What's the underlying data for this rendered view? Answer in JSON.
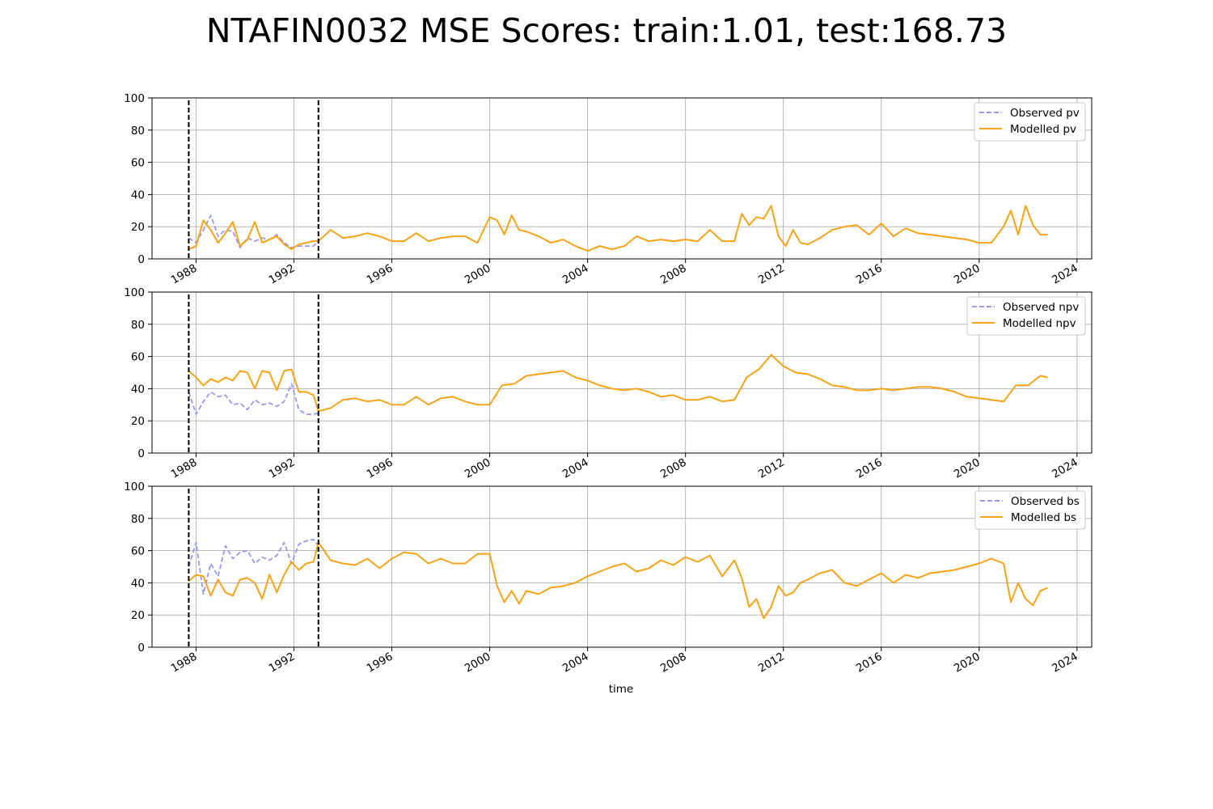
{
  "chart_data": {
    "title": "NTAFIN0032 MSE Scores: train:1.01, test:168.73",
    "xlabel": "time",
    "type": "line",
    "x_range": [
      1986.2,
      2024.6
    ],
    "x_ticks": [
      "1988",
      "1992",
      "1996",
      "2000",
      "2004",
      "2008",
      "2012",
      "2016",
      "2020",
      "2024"
    ],
    "y_ticks": [
      "0",
      "20",
      "40",
      "60",
      "80",
      "100"
    ],
    "ylim": [
      0,
      100
    ],
    "grid": true,
    "vlines": [
      1987.7,
      1993.0
    ],
    "colors": {
      "observed": "#9999ee",
      "modelled": "#f5a418",
      "vline": "#000000",
      "grid": "#b0b0b0"
    },
    "panels": [
      {
        "name": "pv",
        "legend_position": "upper right",
        "legend": [
          "Observed pv",
          "Modelled pv"
        ],
        "series": [
          {
            "name": "Observed pv",
            "style": "dashed",
            "x": [
              1987.7,
              1988.0,
              1988.3,
              1988.6,
              1988.9,
              1989.2,
              1989.5,
              1989.8,
              1990.1,
              1990.4,
              1990.7,
              1991.0,
              1991.3,
              1991.6,
              1991.9,
              1992.2,
              1992.5,
              1992.8,
              1993.0
            ],
            "y": [
              13,
              10,
              18,
              27,
              14,
              18,
              17,
              7,
              13,
              11,
              13,
              12,
              15,
              10,
              7,
              8,
              8,
              8,
              11
            ]
          },
          {
            "name": "Modelled pv",
            "style": "solid",
            "x": [
              1987.7,
              1988.0,
              1988.3,
              1988.6,
              1988.9,
              1989.2,
              1989.5,
              1989.8,
              1990.1,
              1990.4,
              1990.7,
              1991.0,
              1991.3,
              1991.6,
              1991.9,
              1992.2,
              1992.5,
              1992.8,
              1993.0,
              1993.5,
              1994.0,
              1994.5,
              1995.0,
              1995.5,
              1996.0,
              1996.5,
              1997.0,
              1997.5,
              1998.0,
              1998.5,
              1999.0,
              1999.5,
              2000.0,
              2000.3,
              2000.6,
              2000.9,
              2001.2,
              2001.5,
              2002.0,
              2002.5,
              2003.0,
              2003.5,
              2004.0,
              2004.5,
              2005.0,
              2005.5,
              2006.0,
              2006.5,
              2007.0,
              2007.5,
              2008.0,
              2008.5,
              2009.0,
              2009.5,
              2010.0,
              2010.3,
              2010.6,
              2010.9,
              2011.2,
              2011.5,
              2011.8,
              2012.1,
              2012.4,
              2012.7,
              2013.0,
              2013.5,
              2014.0,
              2014.5,
              2015.0,
              2015.5,
              2016.0,
              2016.5,
              2017.0,
              2017.5,
              2018.0,
              2018.5,
              2019.0,
              2019.5,
              2020.0,
              2020.5,
              2021.0,
              2021.3,
              2021.6,
              2021.9,
              2022.2,
              2022.5,
              2022.8
            ],
            "y": [
              6,
              8,
              24,
              18,
              10,
              16,
              23,
              8,
              12,
              23,
              10,
              12,
              14,
              9,
              6,
              9,
              10,
              11,
              11,
              18,
              13,
              14,
              16,
              14,
              11,
              11,
              16,
              11,
              13,
              14,
              14,
              10,
              26,
              24,
              15,
              27,
              18,
              17,
              14,
              10,
              12,
              8,
              5,
              8,
              6,
              8,
              14,
              11,
              12,
              11,
              12,
              11,
              18,
              11,
              11,
              28,
              21,
              26,
              25,
              33,
              14,
              8,
              18,
              10,
              9,
              13,
              18,
              20,
              21,
              15,
              22,
              14,
              19,
              16,
              15,
              14,
              13,
              12,
              10,
              10,
              20,
              30,
              15,
              33,
              21,
              15,
              15
            ]
          }
        ]
      },
      {
        "name": "npv",
        "legend_position": "upper right",
        "legend": [
          "Observed npv",
          "Modelled npv"
        ],
        "series": [
          {
            "name": "Observed npv",
            "style": "dashed",
            "x": [
              1987.7,
              1988.0,
              1988.3,
              1988.6,
              1988.9,
              1989.2,
              1989.5,
              1989.8,
              1990.1,
              1990.4,
              1990.7,
              1991.0,
              1991.3,
              1991.6,
              1991.9,
              1992.2,
              1992.5,
              1992.8,
              1993.0
            ],
            "y": [
              38,
              24,
              32,
              38,
              35,
              36,
              30,
              31,
              27,
              33,
              30,
              31,
              29,
              32,
              43,
              27,
              24,
              24,
              25
            ]
          },
          {
            "name": "Modelled npv",
            "style": "solid",
            "x": [
              1987.7,
              1988.0,
              1988.3,
              1988.6,
              1988.9,
              1989.2,
              1989.5,
              1989.8,
              1990.1,
              1990.4,
              1990.7,
              1991.0,
              1991.3,
              1991.6,
              1991.9,
              1992.2,
              1992.5,
              1992.8,
              1993.0,
              1993.5,
              1994.0,
              1994.5,
              1995.0,
              1995.5,
              1996.0,
              1996.5,
              1997.0,
              1997.5,
              1998.0,
              1998.5,
              1999.0,
              1999.5,
              2000.0,
              2000.5,
              2001.0,
              2001.5,
              2002.0,
              2002.5,
              2003.0,
              2003.5,
              2004.0,
              2004.5,
              2005.0,
              2005.5,
              2006.0,
              2006.5,
              2007.0,
              2007.5,
              2008.0,
              2008.5,
              2009.0,
              2009.5,
              2010.0,
              2010.5,
              2011.0,
              2011.5,
              2012.0,
              2012.5,
              2013.0,
              2013.5,
              2014.0,
              2014.5,
              2015.0,
              2015.5,
              2016.0,
              2016.5,
              2017.0,
              2017.5,
              2018.0,
              2018.5,
              2019.0,
              2019.5,
              2020.0,
              2020.5,
              2021.0,
              2021.5,
              2022.0,
              2022.5,
              2022.8
            ],
            "y": [
              51,
              47,
              42,
              46,
              44,
              47,
              45,
              51,
              50,
              40,
              51,
              50,
              39,
              51,
              52,
              38,
              38,
              36,
              26,
              28,
              33,
              34,
              32,
              33,
              30,
              30,
              35,
              30,
              34,
              35,
              32,
              30,
              30,
              42,
              43,
              48,
              49,
              50,
              51,
              47,
              45,
              42,
              40,
              39,
              40,
              38,
              35,
              36,
              33,
              33,
              35,
              32,
              33,
              47,
              52,
              61,
              54,
              50,
              49,
              46,
              42,
              41,
              39,
              39,
              40,
              39,
              40,
              41,
              41,
              40,
              38,
              35,
              34,
              33,
              32,
              42,
              42,
              48,
              47
            ]
          }
        ]
      },
      {
        "name": "bs",
        "legend_position": "upper right",
        "legend": [
          "Observed bs",
          "Modelled bs"
        ],
        "series": [
          {
            "name": "Observed bs",
            "style": "dashed",
            "x": [
              1987.7,
              1988.0,
              1988.3,
              1988.6,
              1988.9,
              1989.2,
              1989.5,
              1989.8,
              1990.1,
              1990.4,
              1990.7,
              1991.0,
              1991.3,
              1991.6,
              1991.9,
              1992.2,
              1992.5,
              1992.8,
              1993.0
            ],
            "y": [
              50,
              65,
              33,
              52,
              44,
              63,
              55,
              59,
              60,
              52,
              56,
              54,
              57,
              65,
              52,
              64,
              66,
              67,
              63
            ]
          },
          {
            "name": "Modelled bs",
            "style": "solid",
            "x": [
              1987.7,
              1988.0,
              1988.3,
              1988.6,
              1988.9,
              1989.2,
              1989.5,
              1989.8,
              1990.1,
              1990.4,
              1990.7,
              1991.0,
              1991.3,
              1991.6,
              1991.9,
              1992.2,
              1992.5,
              1992.8,
              1993.0,
              1993.5,
              1994.0,
              1994.5,
              1995.0,
              1995.5,
              1996.0,
              1996.5,
              1997.0,
              1997.5,
              1998.0,
              1998.5,
              1999.0,
              1999.5,
              2000.0,
              2000.3,
              2000.6,
              2000.9,
              2001.2,
              2001.5,
              2002.0,
              2002.5,
              2003.0,
              2003.5,
              2004.0,
              2004.5,
              2005.0,
              2005.5,
              2006.0,
              2006.5,
              2007.0,
              2007.5,
              2008.0,
              2008.5,
              2009.0,
              2009.5,
              2010.0,
              2010.3,
              2010.6,
              2010.9,
              2011.2,
              2011.5,
              2011.8,
              2012.1,
              2012.4,
              2012.7,
              2013.0,
              2013.5,
              2014.0,
              2014.5,
              2015.0,
              2015.5,
              2016.0,
              2016.5,
              2017.0,
              2017.5,
              2018.0,
              2018.5,
              2019.0,
              2019.5,
              2020.0,
              2020.5,
              2021.0,
              2021.3,
              2021.6,
              2021.9,
              2022.2,
              2022.5,
              2022.8
            ],
            "y": [
              41,
              45,
              44,
              32,
              42,
              34,
              32,
              42,
              43,
              40,
              30,
              45,
              34,
              45,
              53,
              48,
              52,
              53,
              65,
              54,
              52,
              51,
              55,
              49,
              55,
              59,
              58,
              52,
              55,
              52,
              52,
              58,
              58,
              38,
              28,
              35,
              27,
              35,
              33,
              37,
              38,
              40,
              44,
              47,
              50,
              52,
              47,
              49,
              54,
              51,
              56,
              53,
              57,
              44,
              54,
              43,
              25,
              30,
              18,
              25,
              38,
              32,
              34,
              40,
              42,
              46,
              48,
              40,
              38,
              42,
              46,
              40,
              45,
              43,
              46,
              47,
              48,
              50,
              52,
              55,
              52,
              28,
              40,
              30,
              26,
              35,
              37
            ]
          }
        ]
      }
    ]
  }
}
